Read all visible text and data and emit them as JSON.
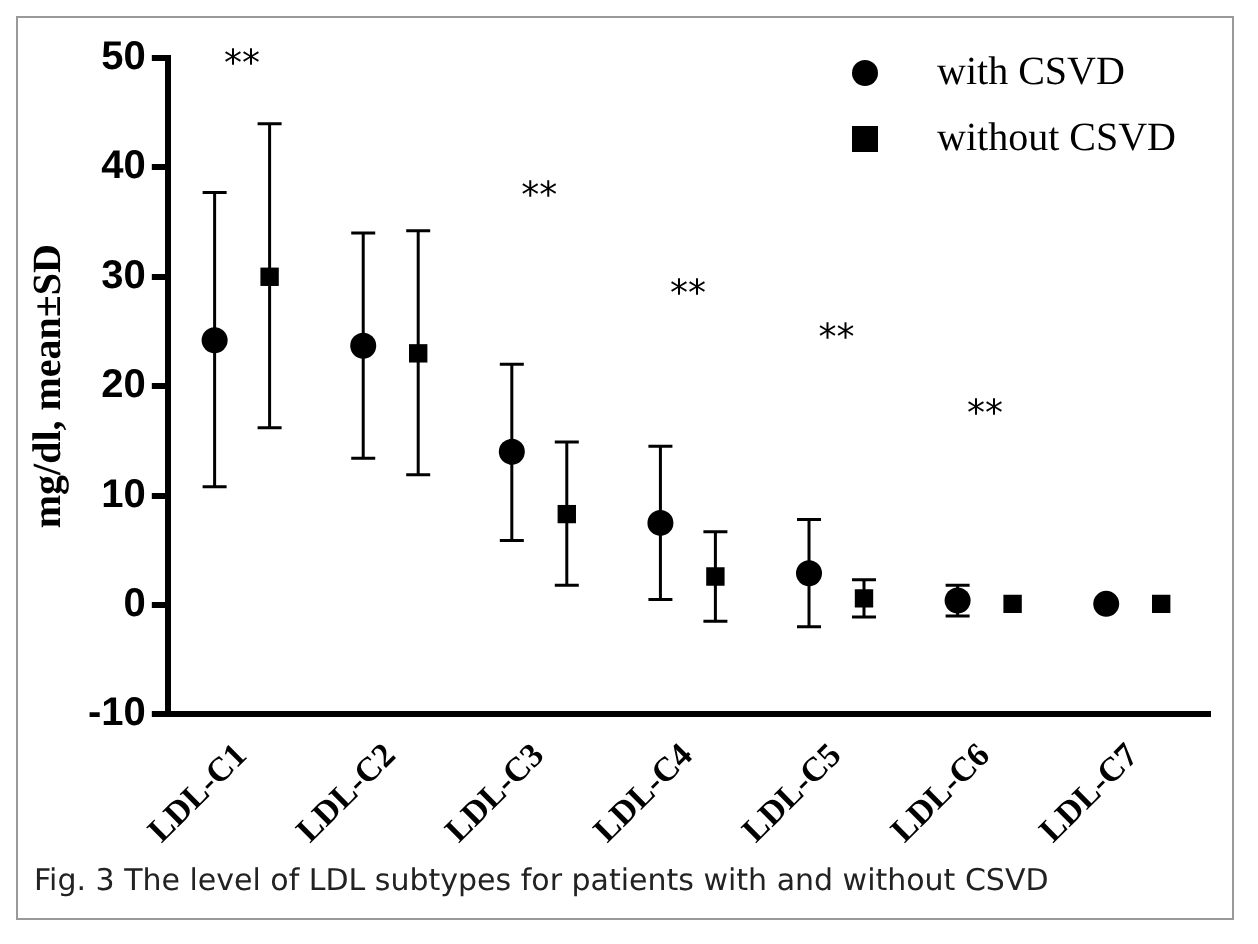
{
  "chart_data": {
    "type": "scatter",
    "ylabel": "mg/dl, mean±SD",
    "categories": [
      "LDL-C1",
      "LDL-C2",
      "LDL-C3",
      "LDL-C4",
      "LDL-C5",
      "LDL-C6",
      "LDL-C7"
    ],
    "ylim": [
      -10,
      50
    ],
    "yticks": [
      -10,
      0,
      10,
      20,
      30,
      40,
      50
    ],
    "grid": false,
    "legend": "top right",
    "series": [
      {
        "name": "with CSVD",
        "color": "#000000",
        "marker": "circle",
        "values": [
          24.2,
          23.7,
          14,
          7.5,
          2.9,
          0.4,
          0.1
        ],
        "errors": [
          [
            10.8,
            37.7
          ],
          [
            13.4,
            34
          ],
          [
            5.9,
            22
          ],
          [
            0.5,
            14.5
          ],
          [
            -2,
            7.8
          ],
          [
            -1,
            1.8
          ],
          null
        ]
      },
      {
        "name": "without CSVD",
        "color": "#000000",
        "marker": "square",
        "values": [
          30,
          23,
          8.3,
          2.6,
          0.6,
          0.1,
          0.1
        ],
        "errors": [
          [
            16.2,
            44
          ],
          [
            11.9,
            34.2
          ],
          [
            1.8,
            14.9
          ],
          [
            -1.5,
            6.7
          ],
          [
            -1.1,
            2.3
          ],
          null,
          null
        ]
      }
    ],
    "annotations": [
      "**",
      "**",
      "**",
      "**",
      "**",
      "Fig. 3  The level of LDL subtypes for patients with and without CSVD"
    ]
  }
}
